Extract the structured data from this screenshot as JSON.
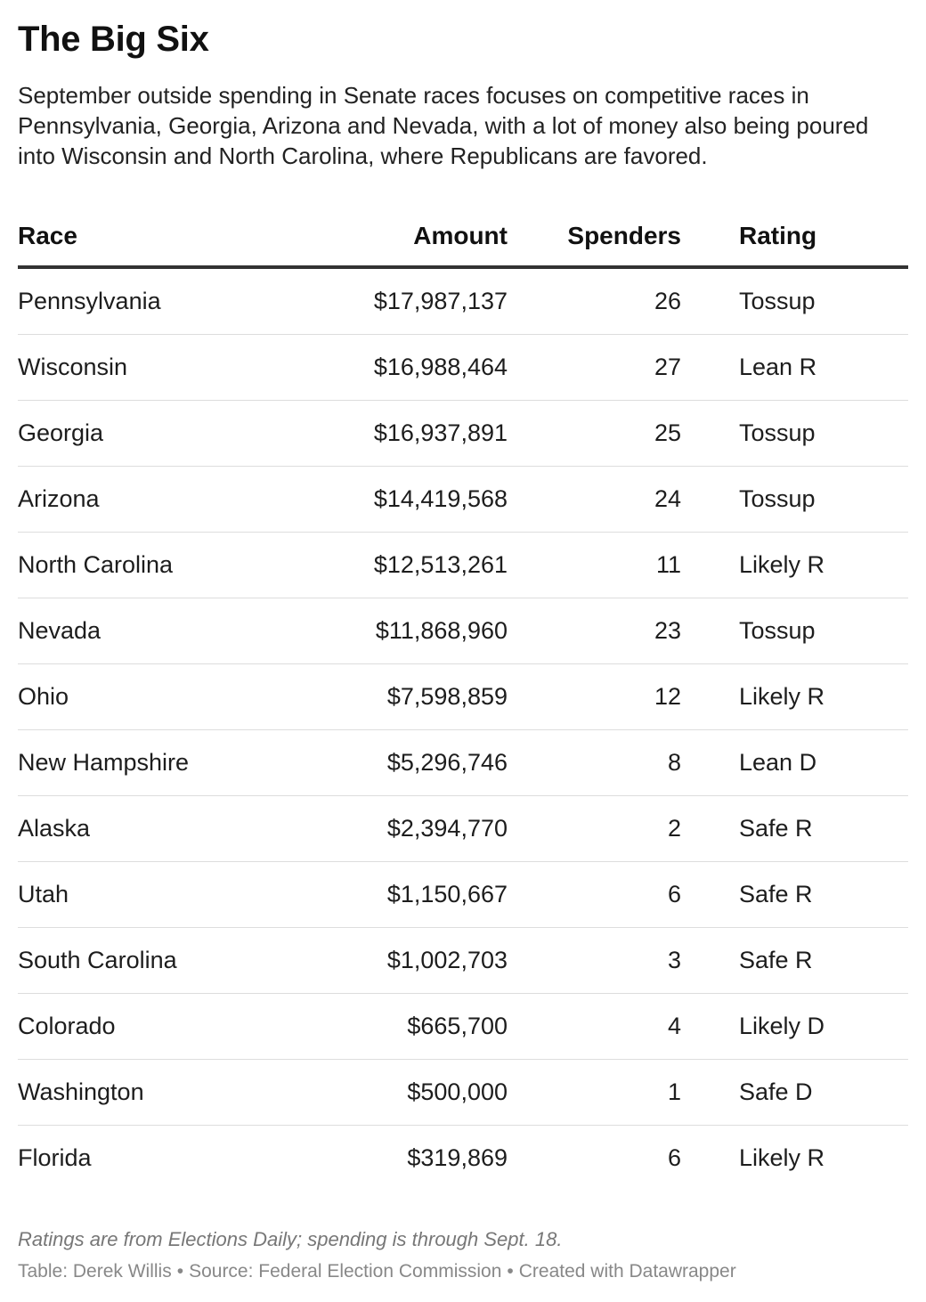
{
  "chart_data": {
    "type": "table",
    "title": "The Big Six",
    "subtitle": "September outside spending in Senate races focuses on competitive races in Pennsylvania, Georgia, Arizona and Nevada, with a lot of money also being poured into Wisconsin and North Carolina, where Republicans are favored.",
    "columns": [
      "Race",
      "Amount",
      "Spenders",
      "Rating"
    ],
    "rows": [
      [
        "Pennsylvania",
        "$17,987,137",
        "26",
        "Tossup"
      ],
      [
        "Wisconsin",
        "$16,988,464",
        "27",
        "Lean R"
      ],
      [
        "Georgia",
        "$16,937,891",
        "25",
        "Tossup"
      ],
      [
        "Arizona",
        "$14,419,568",
        "24",
        "Tossup"
      ],
      [
        "North Carolina",
        "$12,513,261",
        "11",
        "Likely R"
      ],
      [
        "Nevada",
        "$11,868,960",
        "23",
        "Tossup"
      ],
      [
        "Ohio",
        "$7,598,859",
        "12",
        "Likely R"
      ],
      [
        "New Hampshire",
        "$5,296,746",
        "8",
        "Lean D"
      ],
      [
        "Alaska",
        "$2,394,770",
        "2",
        "Safe R"
      ],
      [
        "Utah",
        "$1,150,667",
        "6",
        "Safe R"
      ],
      [
        "South Carolina",
        "$1,002,703",
        "3",
        "Safe R"
      ],
      [
        "Colorado",
        "$665,700",
        "4",
        "Likely D"
      ],
      [
        "Washington",
        "$500,000",
        "1",
        "Safe D"
      ],
      [
        "Florida",
        "$319,869",
        "6",
        "Likely R"
      ]
    ]
  },
  "footer": {
    "note": "Ratings are from Elections Daily; spending is through Sept. 18.",
    "credit_table": "Table: Derek Willis",
    "credit_source": "Source: Federal Election Commission",
    "credit_tool": "Created with Datawrapper",
    "separator": "•"
  }
}
